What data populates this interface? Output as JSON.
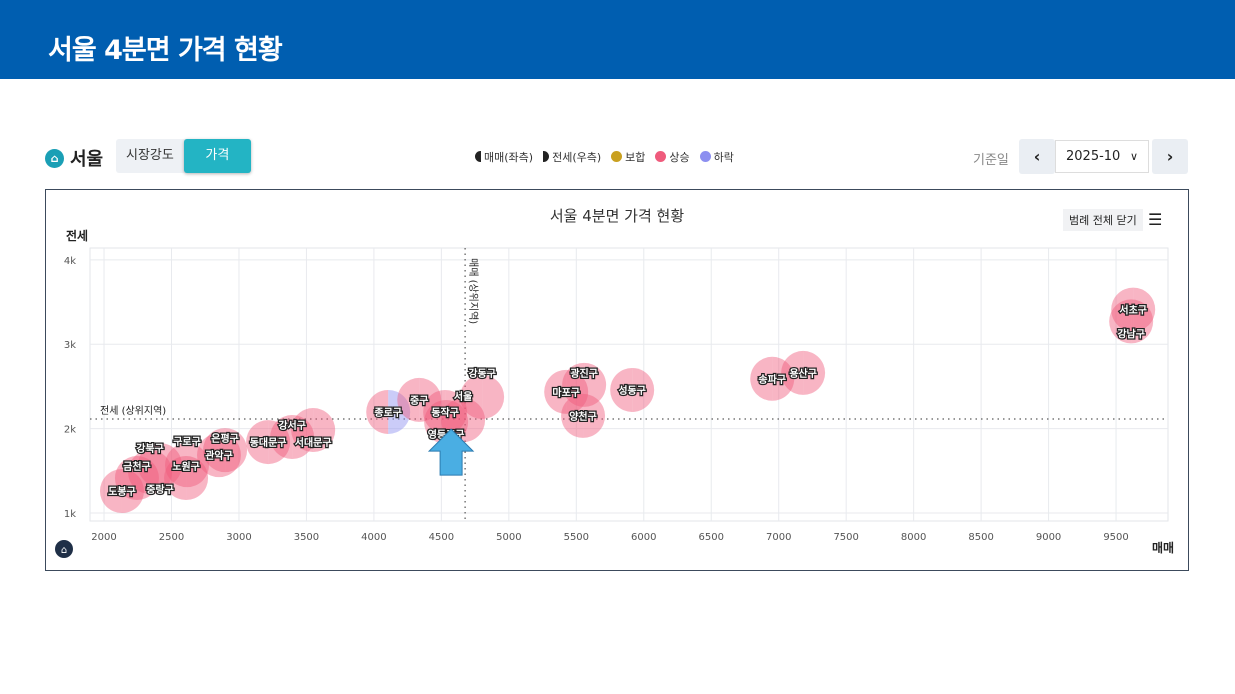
{
  "header": {
    "title": "서울 4분면 가격 현황"
  },
  "region": {
    "name": "서울"
  },
  "tabs": [
    {
      "label": "시장강도",
      "active": false
    },
    {
      "label": "가격",
      "active": true
    }
  ],
  "legend": [
    {
      "label": "매매(좌측)",
      "icon": "left-half-circle"
    },
    {
      "label": "전세(우측)",
      "icon": "right-half-circle"
    },
    {
      "label": "보합",
      "color": "#c9a020"
    },
    {
      "label": "상승",
      "color": "#ef5b7c"
    },
    {
      "label": "하락",
      "color": "#8c8ff0"
    }
  ],
  "date": {
    "label": "기준일",
    "value": "2025-10"
  },
  "chart_controls": {
    "legend_toggle": "범례 전체 닫기"
  },
  "chart_data": {
    "type": "scatter",
    "title": "서울 4분면 가격 현황",
    "xlabel": "매매",
    "ylabel": "전세",
    "xlim": [
      1896,
      9885
    ],
    "ylim": [
      905,
      4140
    ],
    "xticks": [
      2000,
      2500,
      3000,
      3500,
      4000,
      4500,
      5000,
      5500,
      6000,
      6500,
      7000,
      7500,
      8000,
      8500,
      9000,
      9500
    ],
    "yticks": [
      {
        "v": 1000,
        "label": "1k"
      },
      {
        "v": 2000,
        "label": "2k"
      },
      {
        "v": 3000,
        "label": "3k"
      },
      {
        "v": 4000,
        "label": "4k"
      }
    ],
    "ref_lines": {
      "x": {
        "value": 4676,
        "label": "매매 (상위지역)"
      },
      "y": {
        "value": 2114,
        "label": "전세 (상위지역)"
      }
    },
    "grid": true,
    "colors": {
      "up": "#ef5b7c",
      "down": "#8c8ff0",
      "flat": "#c9a020"
    },
    "points": [
      {
        "name": "도봉구",
        "x": 2133,
        "y": 1260,
        "sale": "up",
        "jeonse": "up"
      },
      {
        "name": "금천구",
        "x": 2244,
        "y": 1414,
        "sale": "up",
        "jeonse": "up"
      },
      {
        "name": "강북구",
        "x": 2341,
        "y": 1485,
        "sale": "up",
        "jeonse": "up"
      },
      {
        "name": "중랑구",
        "x": 2415,
        "y": 1567,
        "sale": "up",
        "jeonse": "up"
      },
      {
        "name": "노원구",
        "x": 2608,
        "y": 1414,
        "sale": "up",
        "jeonse": "up"
      },
      {
        "name": "구로구",
        "x": 2615,
        "y": 1567,
        "sale": "up",
        "jeonse": "up"
      },
      {
        "name": "관악구",
        "x": 2852,
        "y": 1685,
        "sale": "up",
        "jeonse": "up"
      },
      {
        "name": "은평구",
        "x": 2897,
        "y": 1745,
        "sale": "up",
        "jeonse": "up"
      },
      {
        "name": "동대문구",
        "x": 3216,
        "y": 1840,
        "sale": "up",
        "jeonse": "up"
      },
      {
        "name": "강서구",
        "x": 3394,
        "y": 1900,
        "sale": "up",
        "jeonse": "up"
      },
      {
        "name": "서대문구",
        "x": 3550,
        "y": 1983,
        "sale": "up",
        "jeonse": "up"
      },
      {
        "name": "종로구",
        "x": 4106,
        "y": 2197,
        "sale": "up",
        "jeonse": "down"
      },
      {
        "name": "중구",
        "x": 4336,
        "y": 2340,
        "sale": "up",
        "jeonse": "up"
      },
      {
        "name": "동작구",
        "x": 4528,
        "y": 2197,
        "sale": "up",
        "jeonse": "up"
      },
      {
        "name": "영등포구",
        "x": 4535,
        "y": 2078,
        "sale": "up",
        "jeonse": "up"
      },
      {
        "name": "서울",
        "x": 4661,
        "y": 2100,
        "sale": "up",
        "jeonse": "up",
        "highlight": true
      },
      {
        "name": "강동구",
        "x": 4802,
        "y": 2375,
        "sale": "up",
        "jeonse": "up"
      },
      {
        "name": "마포구",
        "x": 5425,
        "y": 2435,
        "sale": "up",
        "jeonse": "up"
      },
      {
        "name": "광진구",
        "x": 5558,
        "y": 2518,
        "sale": "up",
        "jeonse": "up"
      },
      {
        "name": "양천구",
        "x": 5550,
        "y": 2150,
        "sale": "up",
        "jeonse": "up"
      },
      {
        "name": "성동구",
        "x": 5914,
        "y": 2458,
        "sale": "up",
        "jeonse": "up"
      },
      {
        "name": "송파구",
        "x": 6952,
        "y": 2590,
        "sale": "up",
        "jeonse": "up"
      },
      {
        "name": "용산구",
        "x": 7181,
        "y": 2660,
        "sale": "up",
        "jeonse": "up"
      },
      {
        "name": "서초구",
        "x": 9627,
        "y": 3410,
        "sale": "up",
        "jeonse": "up"
      },
      {
        "name": "강남구",
        "x": 9612,
        "y": 3270,
        "sale": "up",
        "jeonse": "up"
      }
    ]
  }
}
